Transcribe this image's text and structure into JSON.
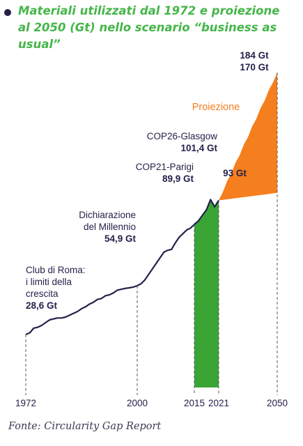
{
  "title": "Materiali utilizzati dal 1972 e proiezione\nal 2050 (Gt) nello scenario “business as usual”",
  "source": "Fonte: Circularity Gap Report",
  "colors": {
    "line": "#23214a",
    "green": "#3aa535",
    "orange": "#f57f1e",
    "title": "#45b649",
    "bullet": "#23214a"
  },
  "chart_data": {
    "type": "line",
    "title": "Materiali utilizzati dal 1972 e proiezione al 2050 (Gt) nello scenario “business as usual”",
    "xlabel": "",
    "ylabel": "",
    "xlim": [
      1972,
      2050
    ],
    "ylim": [
      0,
      200
    ],
    "x_ticks": [
      "1972",
      "2000",
      "2015",
      "2021",
      "2050"
    ],
    "grid": false,
    "series": [
      {
        "name": "",
        "x": [
          1972,
          1973,
          1974,
          1975,
          1976,
          1977,
          1978,
          1979,
          1980,
          1981,
          1982,
          1983,
          1984,
          1985,
          1986,
          1987,
          1988,
          1989,
          1990,
          1991,
          1992,
          1993,
          1994,
          1995,
          1996,
          1997,
          1998,
          1999,
          2000,
          2001,
          2002,
          2003,
          2004,
          2005,
          2006,
          2007,
          2008,
          2009,
          2010,
          2011,
          2012,
          2013,
          2014,
          2015,
          2016,
          2017,
          2018,
          2019,
          2020,
          2021
        ],
        "y": [
          28.6,
          29.5,
          32,
          32.5,
          33.5,
          35,
          36.5,
          37,
          37.5,
          37.5,
          38,
          39,
          40,
          41,
          42.5,
          43.5,
          45,
          46,
          47.5,
          48,
          49.5,
          50,
          51,
          52.5,
          53,
          53.5,
          53.8,
          54.2,
          54.9,
          56,
          58,
          61,
          64,
          67,
          70,
          73,
          74,
          74.5,
          78,
          81,
          83,
          85,
          86,
          88,
          89.9,
          93,
          96,
          101.4,
          97.5,
          101
        ]
      }
    ],
    "projection": {
      "label": "Proiezione",
      "x": [
        2021,
        2050
      ],
      "upper": [
        101,
        170
      ],
      "lower": [
        101,
        105
      ]
    },
    "green_band": {
      "x": [
        2015,
        2021
      ]
    },
    "annotations": [
      {
        "id": "club",
        "lines": [
          "Club di Roma:",
          "i limiti della",
          "crescita"
        ],
        "value": "28,6 Gt"
      },
      {
        "id": "millennio",
        "lines": [
          "Dichiarazione",
          "del Millennio"
        ],
        "value": "54,9 Gt"
      },
      {
        "id": "parigi",
        "lines": [
          "COP21-Parigi"
        ],
        "value": "89,9 Gt"
      },
      {
        "id": "glasgow",
        "lines": [
          "COP26-Glasgow"
        ],
        "value": "101,4 Gt"
      },
      {
        "id": "gt93",
        "lines": [],
        "value": "93 Gt"
      },
      {
        "id": "gt184",
        "lines": [],
        "value": "184 Gt"
      },
      {
        "id": "gt170",
        "lines": [],
        "value": "170 Gt"
      }
    ]
  }
}
